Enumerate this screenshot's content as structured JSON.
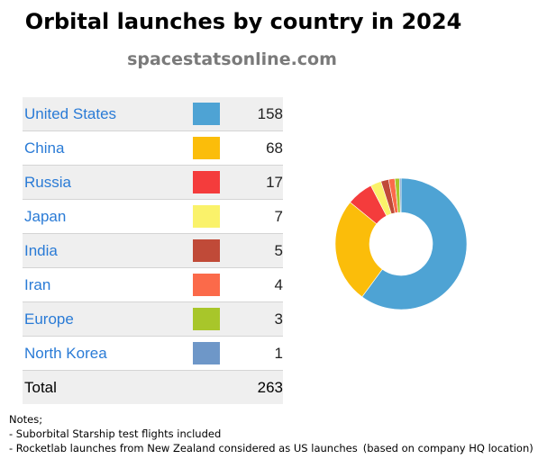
{
  "title": "Orbital launches by country in 2024",
  "subtitle": "spacestatsonline.com",
  "table": {
    "rows": [
      {
        "country": "United States",
        "count": "158",
        "color": "#4ea3d4"
      },
      {
        "country": "China",
        "count": "68",
        "color": "#fbbd0a"
      },
      {
        "country": "Russia",
        "count": "17",
        "color": "#f43c3c"
      },
      {
        "country": "Japan",
        "count": "7",
        "color": "#faf26a"
      },
      {
        "country": "India",
        "count": "5",
        "color": "#c04a38"
      },
      {
        "country": "Iran",
        "count": "4",
        "color": "#fb6a4a"
      },
      {
        "country": "Europe",
        "count": "3",
        "color": "#a8c62a"
      },
      {
        "country": "North Korea",
        "count": "1",
        "color": "#6e97c8"
      }
    ],
    "total_label": "Total",
    "total_value": "263"
  },
  "notes": {
    "heading": "Notes;",
    "line1": "- Suborbital Starship test flights included",
    "line2": "- Rocketlab launches from New Zealand considered as US launches",
    "line2_aside": "(based on company HQ location)"
  },
  "chart_data": {
    "type": "pie",
    "title": "Orbital launches by country in 2024",
    "subtitle": "spacestatsonline.com",
    "categories": [
      "United States",
      "China",
      "Russia",
      "Japan",
      "India",
      "Iran",
      "Europe",
      "North Korea"
    ],
    "values": [
      158,
      68,
      17,
      7,
      5,
      4,
      3,
      1
    ],
    "colors": [
      "#4ea3d4",
      "#fbbd0a",
      "#f43c3c",
      "#faf26a",
      "#c04a38",
      "#fb6a4a",
      "#a8c62a",
      "#6e97c8"
    ],
    "total": 263,
    "donut": true
  }
}
